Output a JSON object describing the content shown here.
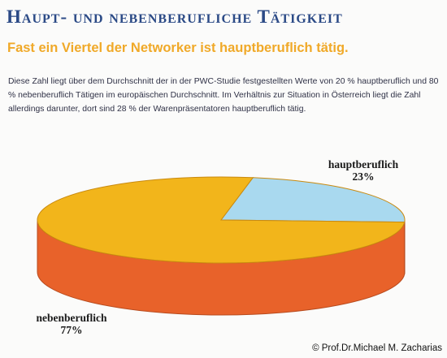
{
  "header": {
    "title": "Haupt- und nebenberufliche Tätigkeit",
    "subtitle": "Fast ein Viertel der Networker ist hauptberuflich tätig."
  },
  "body_text": "Diese Zahl liegt über dem Durchschnitt der in der PWC-Studie festgestellten Werte von 20 % hauptberuflich und 80 % nebenberuflich Tätigen im europäischen Durchschnitt. Im Verhältnis zur Situation in Österreich liegt die Zahl allerdings darunter, dort sind 28 % der Warenpräsentatoren hauptberuflich tätig.",
  "chart_data": {
    "type": "pie",
    "categories": [
      "hauptberuflich",
      "nebenberuflich"
    ],
    "values": [
      23,
      77
    ],
    "value_labels": [
      "23%",
      "77%"
    ],
    "colors": [
      "#a9d9ef",
      "#f2b51b"
    ],
    "side_colors": [
      "#5e8ea6",
      "#e8622a"
    ],
    "style": "3d"
  },
  "footer": {
    "copyright": "© Prof.Dr.Michael M. Zacharias"
  }
}
